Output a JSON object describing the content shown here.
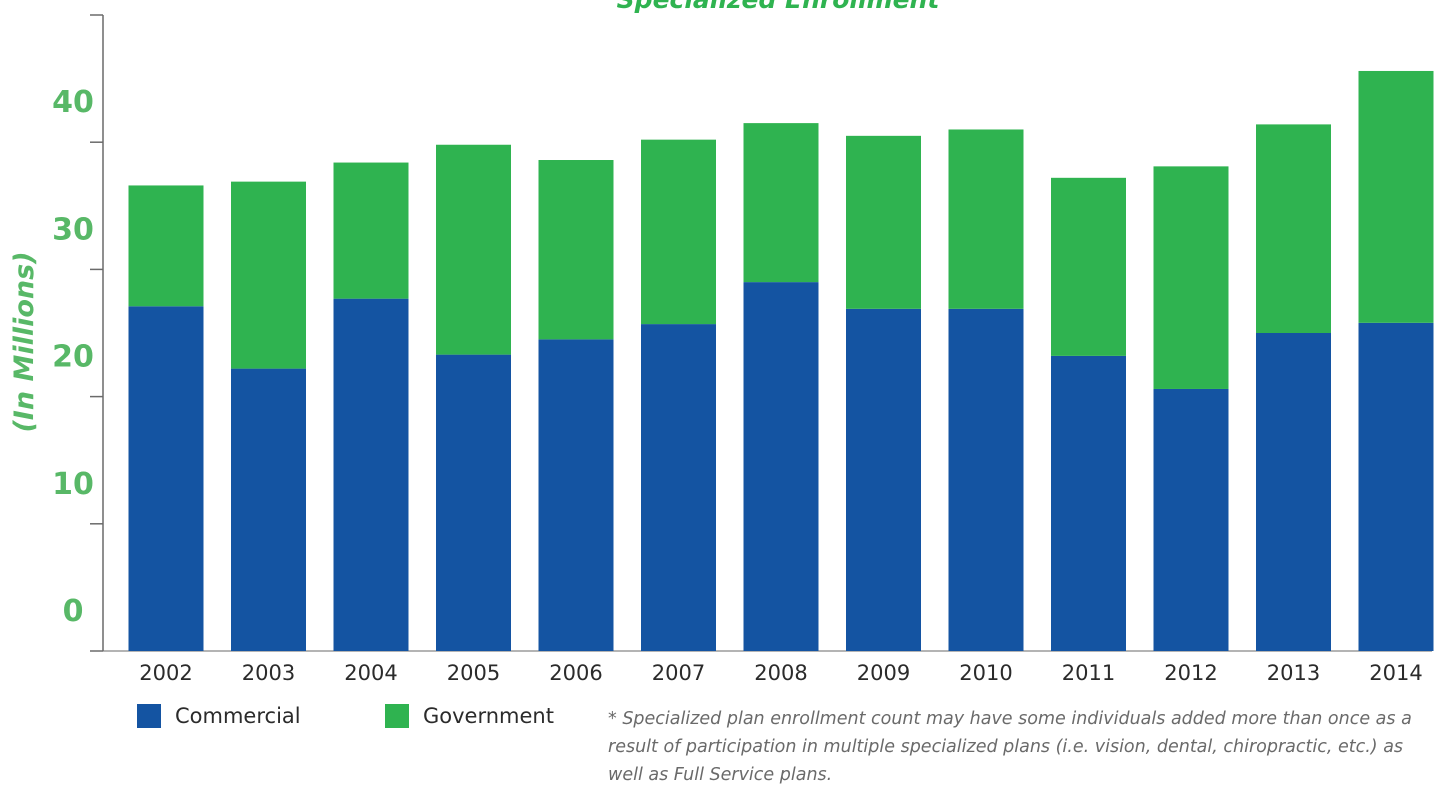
{
  "colors": {
    "commercial": "#1454a2",
    "government": "#2fb350",
    "accent_green": "#58b867",
    "axis": "#6a6a6a",
    "tick_text": "#2b2b2b"
  },
  "chart_data": {
    "type": "bar",
    "stacked": true,
    "title": "Specialized Enrollment",
    "ylabel": "(In Millions)",
    "xlabel": "",
    "categories": [
      "2002",
      "2003",
      "2004",
      "2005",
      "2006",
      "2007",
      "2008",
      "2009",
      "2010",
      "2011",
      "2012",
      "2013",
      "2014"
    ],
    "series": [
      {
        "name": "Commercial",
        "color": "#1454a2",
        "values": [
          27.1,
          22.2,
          27.7,
          23.3,
          24.5,
          25.7,
          29.0,
          26.9,
          26.9,
          23.2,
          20.6,
          25.0,
          25.8
        ]
      },
      {
        "name": "Government",
        "color": "#2fb350",
        "values": [
          9.5,
          14.7,
          10.7,
          16.5,
          14.1,
          14.5,
          12.5,
          13.6,
          14.1,
          14.0,
          17.5,
          16.4,
          19.8
        ]
      }
    ],
    "ylim": [
      0,
      50
    ],
    "yticks": [
      0,
      10,
      20,
      30,
      40,
      50
    ],
    "grid": false,
    "legend_position": "bottom-left"
  },
  "legend": {
    "commercial_label": "Commercial",
    "government_label": "Government"
  },
  "footnote": "* Specialized plan enrollment count may have some individuals added more than once as a result of participation in multiple specialized plans (i.e. vision, dental, chiropractic, etc.) as well as Full Service plans."
}
